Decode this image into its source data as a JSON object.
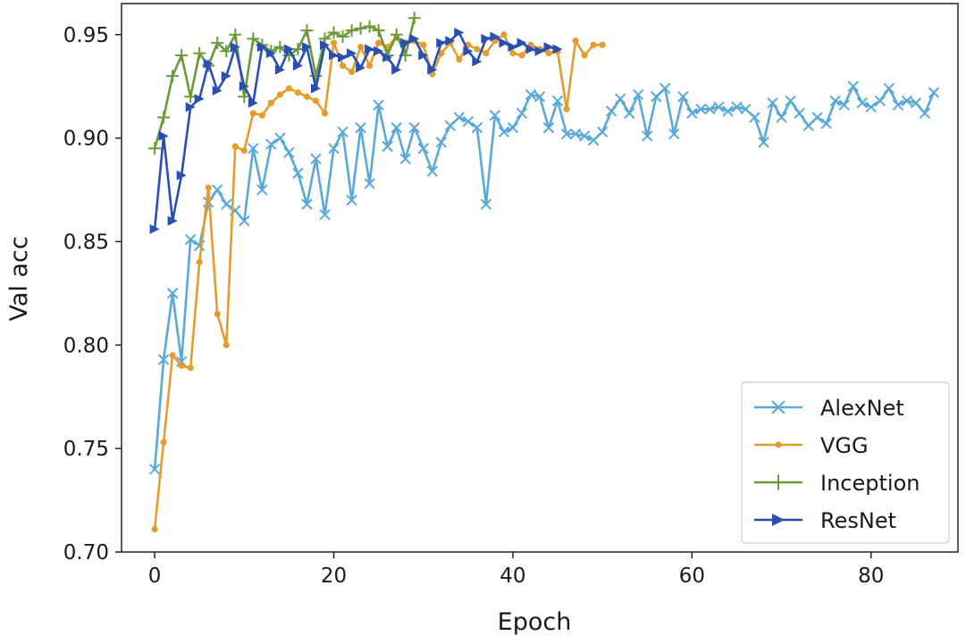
{
  "chart_data": {
    "type": "line",
    "title": "",
    "xlabel": "Epoch",
    "ylabel": "Val acc",
    "xlim": [
      -3.7,
      89.7
    ],
    "ylim": [
      0.7,
      0.965
    ],
    "xticks": [
      0,
      20,
      40,
      60,
      80
    ],
    "yticks": [
      0.7,
      0.75,
      0.8,
      0.85,
      0.9,
      0.95
    ],
    "xtick_labels": [
      "0",
      "20",
      "40",
      "60",
      "80"
    ],
    "ytick_labels": [
      "0.70",
      "0.75",
      "0.80",
      "0.85",
      "0.90",
      "0.95"
    ],
    "grid": false,
    "legend_position": "lower-right",
    "series": [
      {
        "name": "AlexNet",
        "color": "#5aa9d6",
        "marker": "x",
        "values": [
          0.74,
          0.793,
          0.825,
          0.792,
          0.851,
          0.848,
          0.869,
          0.875,
          0.868,
          0.865,
          0.86,
          0.895,
          0.875,
          0.897,
          0.9,
          0.893,
          0.883,
          0.868,
          0.89,
          0.863,
          0.895,
          0.903,
          0.87,
          0.905,
          0.878,
          0.916,
          0.896,
          0.905,
          0.89,
          0.905,
          0.895,
          0.884,
          0.898,
          0.906,
          0.91,
          0.908,
          0.905,
          0.868,
          0.911,
          0.903,
          0.905,
          0.912,
          0.921,
          0.92,
          0.905,
          0.918,
          0.902,
          0.902,
          0.901,
          0.899,
          0.903,
          0.913,
          0.919,
          0.912,
          0.921,
          0.901,
          0.92,
          0.924,
          0.902,
          0.92,
          0.912,
          0.914,
          0.914,
          0.915,
          0.913,
          0.915,
          0.914,
          0.91,
          0.898,
          0.917,
          0.91,
          0.918,
          0.912,
          0.906,
          0.91,
          0.907,
          0.918,
          0.916,
          0.925,
          0.917,
          0.915,
          0.918,
          0.924,
          0.916,
          0.918,
          0.917,
          0.912,
          0.922
        ]
      },
      {
        "name": "VGG",
        "color": "#e39d2c",
        "marker": "o",
        "values": [
          0.711,
          0.753,
          0.795,
          0.79,
          0.789,
          0.84,
          0.876,
          0.815,
          0.8,
          0.896,
          0.894,
          0.912,
          0.911,
          0.917,
          0.921,
          0.924,
          0.922,
          0.92,
          0.918,
          0.912,
          0.946,
          0.935,
          0.932,
          0.944,
          0.935,
          0.946,
          0.944,
          0.949,
          0.946,
          0.947,
          0.945,
          0.931,
          0.941,
          0.946,
          0.938,
          0.945,
          0.943,
          0.941,
          0.947,
          0.95,
          0.941,
          0.94,
          0.945,
          0.943,
          0.941,
          0.942,
          0.914,
          0.947,
          0.94,
          0.945,
          0.945
        ]
      },
      {
        "name": "Inception",
        "color": "#6a9a3a",
        "marker": "+",
        "values": [
          0.895,
          0.91,
          0.93,
          0.94,
          0.92,
          0.941,
          0.935,
          0.946,
          0.942,
          0.95,
          0.92,
          0.948,
          0.945,
          0.942,
          0.944,
          0.94,
          0.943,
          0.952,
          0.93,
          0.948,
          0.951,
          0.949,
          0.952,
          0.953,
          0.954,
          0.952,
          0.94,
          0.95,
          0.94,
          0.958
        ]
      },
      {
        "name": "ResNet",
        "color": "#2a4fb0",
        "marker": ">",
        "values": [
          0.856,
          0.901,
          0.86,
          0.882,
          0.915,
          0.919,
          0.936,
          0.923,
          0.93,
          0.944,
          0.925,
          0.917,
          0.944,
          0.941,
          0.933,
          0.943,
          0.935,
          0.944,
          0.924,
          0.945,
          0.94,
          0.939,
          0.941,
          0.934,
          0.943,
          0.942,
          0.939,
          0.933,
          0.946,
          0.948,
          0.94,
          0.933,
          0.946,
          0.947,
          0.951,
          0.942,
          0.937,
          0.948,
          0.949,
          0.946,
          0.944,
          0.946,
          0.943,
          0.942,
          0.944,
          0.943
        ]
      }
    ]
  }
}
